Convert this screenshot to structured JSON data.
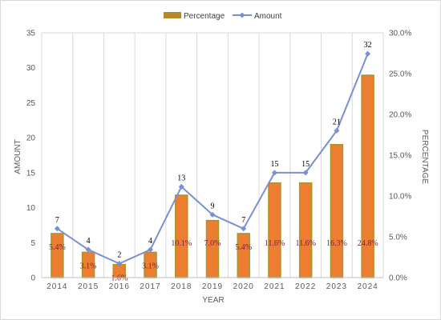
{
  "chart_data": {
    "type": "bar",
    "categories": [
      "2014",
      "2015",
      "2016",
      "2017",
      "2018",
      "2019",
      "2020",
      "2021",
      "2022",
      "2023",
      "2024"
    ],
    "series": [
      {
        "name": "Percentage",
        "axis": "right",
        "chart_type": "bar",
        "values": [
          5.4,
          3.1,
          1.6,
          3.1,
          10.1,
          7.0,
          5.4,
          11.6,
          11.6,
          16.3,
          24.8
        ],
        "labels": [
          "5.4%",
          "3.1%",
          "1.6%",
          "3.1%",
          "10.1%",
          "7.0%",
          "5.4%",
          "11.6%",
          "11.6%",
          "16.3%",
          "24.8%"
        ]
      },
      {
        "name": "Amount",
        "axis": "left",
        "chart_type": "line",
        "values": [
          7,
          4,
          2,
          4,
          13,
          9,
          7,
          15,
          15,
          21,
          32
        ],
        "labels": [
          "7",
          "4",
          "2",
          "4",
          "13",
          "9",
          "7",
          "15",
          "15",
          "21",
          "32"
        ]
      }
    ],
    "xlabel": "YEAR",
    "ylabel": "AMOUNT",
    "y2label": "PERCENTAGE",
    "ylim": [
      0,
      35
    ],
    "y2lim": [
      0,
      30
    ],
    "yticks": [
      "0",
      "5",
      "10",
      "15",
      "20",
      "25",
      "30",
      "35"
    ],
    "y2ticks": [
      "0.0%",
      "5.0%",
      "10.0%",
      "15.0%",
      "20.0%",
      "25.0%",
      "30.0%"
    ],
    "grid": "vertical",
    "legend": "top-center",
    "colors": {
      "bar_fill": "#ED7D31",
      "bar_edge": "#A9962A",
      "legend_bar": "#B8892A",
      "line": "#7A8FD6",
      "gridline": "#d9d9d9",
      "bar_label": "#7a1f3d"
    }
  }
}
